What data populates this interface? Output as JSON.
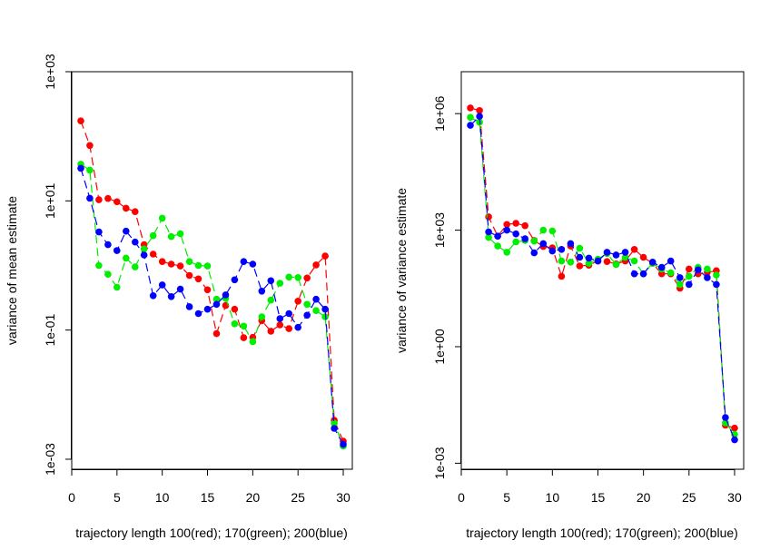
{
  "chart_data": [
    {
      "type": "line",
      "panel": "left",
      "xlabel": "trajectory length 100(red); 170(green); 200(blue)",
      "ylabel": "variance of mean estimate",
      "y_scale": "log10",
      "xlim": [
        0,
        31
      ],
      "ylim": [
        0.0007,
        1000
      ],
      "x_ticks": [
        0,
        5,
        10,
        15,
        20,
        25,
        30
      ],
      "y_ticks": [
        {
          "value": 0.001,
          "label": "1e-03"
        },
        {
          "value": 0.1,
          "label": "1e-01"
        },
        {
          "value": 10,
          "label": "1e+01"
        },
        {
          "value": 1000,
          "label": "1e+03"
        }
      ],
      "x": [
        1,
        2,
        3,
        4,
        5,
        6,
        7,
        8,
        9,
        10,
        11,
        12,
        13,
        14,
        15,
        16,
        17,
        18,
        19,
        20,
        21,
        22,
        23,
        24,
        25,
        26,
        27,
        28,
        29,
        30
      ],
      "series": [
        {
          "color": "#ff0000",
          "values": [
            173,
            72,
            10.4,
            10.9,
            9.7,
            7.7,
            6.8,
            2.1,
            1.5,
            1.15,
            1.05,
            0.98,
            0.7,
            0.62,
            0.42,
            0.088,
            0.24,
            0.21,
            0.076,
            0.077,
            0.14,
            0.096,
            0.12,
            0.105,
            0.28,
            0.64,
            1.02,
            1.4,
            0.004,
            0.0019
          ]
        },
        {
          "color": "#00ee00",
          "values": [
            37,
            30,
            1.0,
            0.73,
            0.46,
            1.3,
            0.95,
            1.8,
            2.9,
            5.4,
            2.8,
            3.1,
            1.15,
            1.0,
            0.98,
            0.3,
            0.31,
            0.125,
            0.115,
            0.066,
            0.16,
            0.29,
            0.53,
            0.66,
            0.65,
            0.25,
            0.2,
            0.16,
            0.0036,
            0.0016
          ]
        },
        {
          "color": "#0000ff",
          "values": [
            32,
            11,
            3.3,
            2.1,
            1.7,
            3.4,
            2.3,
            1.45,
            0.34,
            0.5,
            0.33,
            0.43,
            0.23,
            0.18,
            0.21,
            0.25,
            0.35,
            0.6,
            1.15,
            1.05,
            0.4,
            0.58,
            0.15,
            0.18,
            0.11,
            0.17,
            0.3,
            0.21,
            0.003,
            0.0017
          ]
        }
      ]
    },
    {
      "type": "line",
      "panel": "right",
      "xlabel": "trajectory length 100(red); 170(green); 200(blue)",
      "ylabel": "variance of variance estimate",
      "y_scale": "log10",
      "xlim": [
        0,
        31
      ],
      "ylim": [
        0.0007,
        12000000
      ],
      "x_ticks": [
        0,
        5,
        10,
        15,
        20,
        25,
        30
      ],
      "y_ticks": [
        {
          "value": 0.001,
          "label": "1e-03"
        },
        {
          "value": 1,
          "label": "1e+00"
        },
        {
          "value": 1000,
          "label": "1e+03"
        },
        {
          "value": 1000000,
          "label": "1e+06"
        }
      ],
      "x": [
        1,
        2,
        3,
        4,
        5,
        6,
        7,
        8,
        9,
        10,
        11,
        12,
        13,
        14,
        15,
        16,
        17,
        18,
        19,
        20,
        21,
        22,
        23,
        24,
        25,
        26,
        27,
        28,
        29,
        30
      ],
      "series": [
        {
          "color": "#ff0000",
          "values": [
            1400000,
            1200000,
            2200,
            700,
            1400,
            1500,
            1300,
            540,
            380,
            350,
            65,
            390,
            120,
            125,
            160,
            155,
            135,
            160,
            320,
            200,
            140,
            75,
            75,
            32,
            100,
            75,
            82,
            90,
            0.0095,
            0.008
          ]
        },
        {
          "color": "#00ee00",
          "values": [
            800000,
            600000,
            650,
            390,
            270,
            500,
            540,
            520,
            1000,
            950,
            160,
            150,
            340,
            140,
            180,
            250,
            130,
            200,
            160,
            75,
            140,
            100,
            80,
            40,
            65,
            110,
            100,
            70,
            0.011,
            0.0055
          ]
        },
        {
          "color": "#0000ff",
          "values": [
            500000,
            850000,
            900,
            700,
            1000,
            800,
            600,
            260,
            450,
            290,
            320,
            450,
            200,
            190,
            160,
            270,
            230,
            270,
            75,
            75,
            150,
            110,
            160,
            60,
            40,
            95,
            60,
            40,
            0.015,
            0.004
          ]
        }
      ]
    }
  ]
}
